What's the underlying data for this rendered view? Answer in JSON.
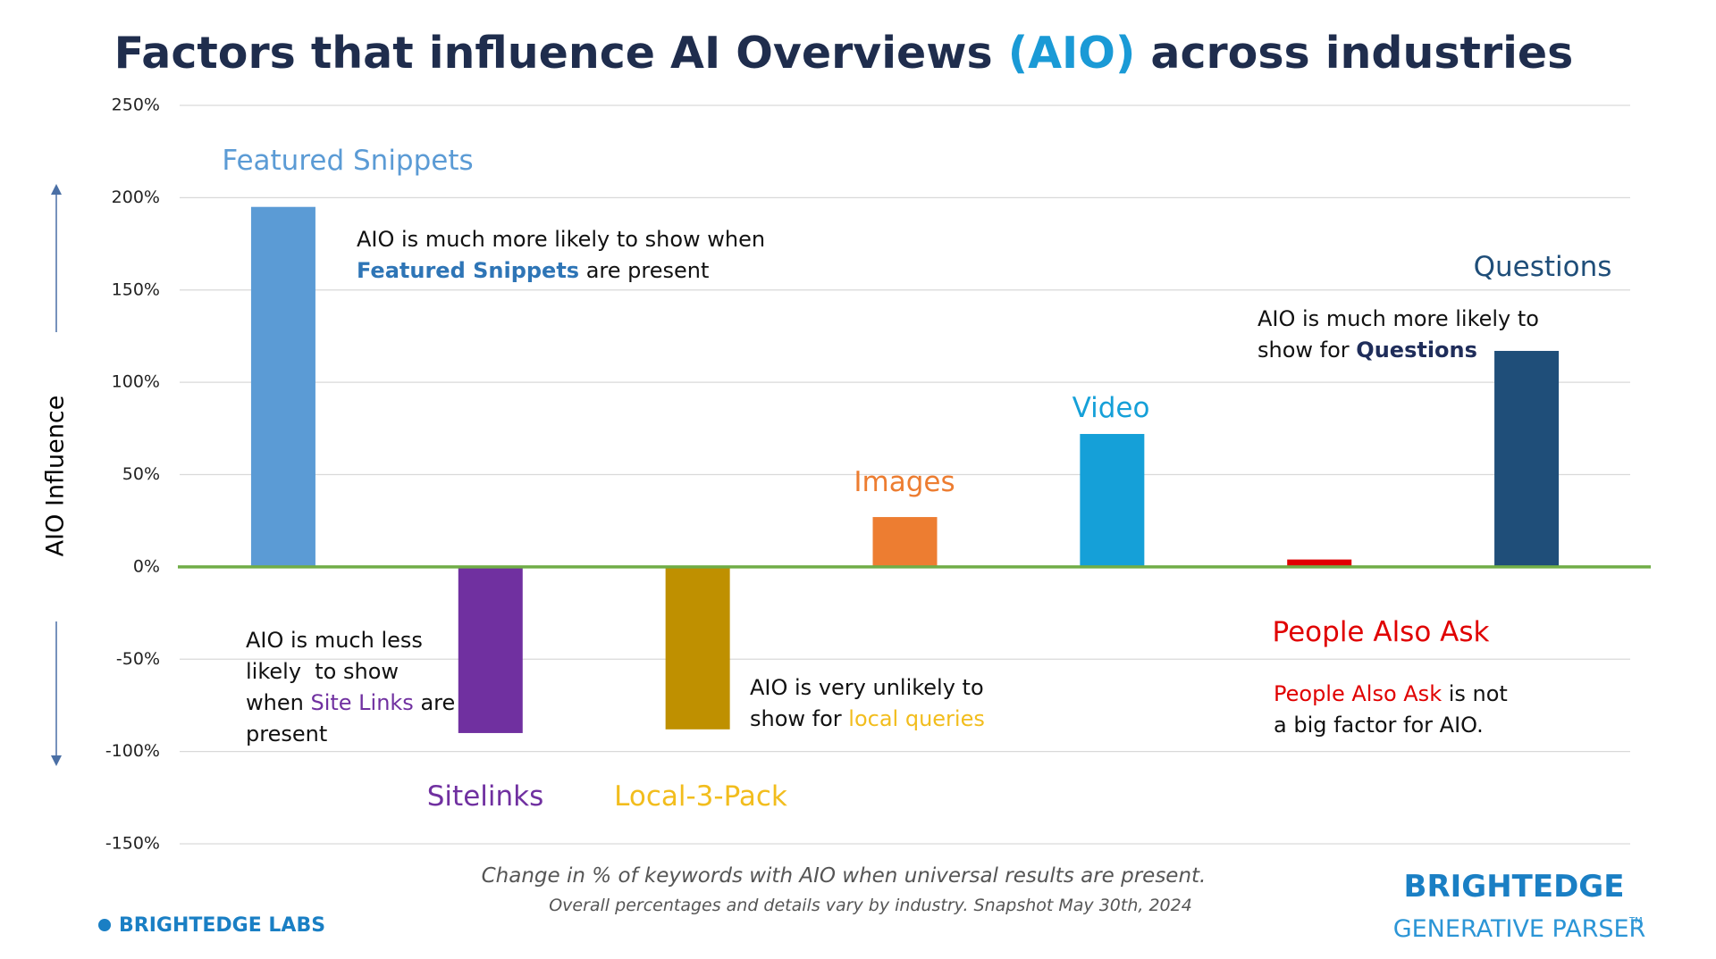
{
  "chart_data": {
    "type": "bar",
    "title_segments": [
      {
        "text": "Factors that influence AI Overviews "
      },
      {
        "text": "(AIO)",
        "color": "#1a9ad6"
      },
      {
        "text": " across industries"
      }
    ],
    "y_label": "AIO Influence",
    "categories": [
      "Featured Snippets",
      "Sitelinks",
      "Local-3-Pack",
      "Images",
      "Video",
      "People Also Ask",
      "Questions"
    ],
    "values": [
      195,
      -90,
      -88,
      27,
      72,
      4,
      117
    ],
    "colors": [
      "#5b9bd5",
      "#7030a0",
      "#bf9000",
      "#ed7d31",
      "#15a0d8",
      "#e00000",
      "#1f4e79"
    ],
    "label_colors": [
      "#5b9bd5",
      "#7030a0",
      "#f2bd1d",
      "#ed7d31",
      "#15a0d8",
      "#e00000",
      "#1f4e79"
    ],
    "ylim": [
      -150,
      250
    ],
    "yticks": [
      {
        "value": -150,
        "label": "-150%"
      },
      {
        "value": -100,
        "label": "-100%"
      },
      {
        "value": -50,
        "label": "-50%"
      },
      {
        "value": 0,
        "label": "0%"
      },
      {
        "value": 50,
        "label": "50%"
      },
      {
        "value": 100,
        "label": "100%"
      },
      {
        "value": 150,
        "label": "150%"
      },
      {
        "value": 200,
        "label": "200%"
      },
      {
        "value": 250,
        "label": "250%"
      }
    ],
    "grid": true,
    "zero_line_color": "#70ad47",
    "annotations": [
      {
        "lines": [
          [
            {
              "text": "AIO is much more likely to show when"
            }
          ],
          [
            {
              "text": "Featured Snippets",
              "color": "#2e75b6",
              "bold": true
            },
            {
              "text": " are present"
            }
          ]
        ]
      },
      {
        "lines": [
          [
            {
              "text": "AIO is much more likely to"
            }
          ],
          [
            {
              "text": "show for "
            },
            {
              "text": "Questions",
              "color": "#1f2d5a",
              "bold": true
            }
          ]
        ]
      },
      {
        "lines": [
          [
            {
              "text": "AIO is much less"
            }
          ],
          [
            {
              "text": "likely  to show"
            }
          ],
          [
            {
              "text": "when "
            },
            {
              "text": "Site Links",
              "color": "#7030a0"
            },
            {
              "text": " are"
            }
          ],
          [
            {
              "text": "present"
            }
          ]
        ]
      },
      {
        "lines": [
          [
            {
              "text": "AIO is very unlikely to"
            }
          ],
          [
            {
              "text": "show for "
            },
            {
              "text": "local queries",
              "color": "#f2bd1d"
            }
          ]
        ]
      },
      {
        "lines": [
          [
            {
              "text": "People Also Ask",
              "color": "#e00000"
            },
            {
              "text": " is not"
            }
          ],
          [
            {
              "text": "a big factor for AIO."
            }
          ]
        ]
      }
    ],
    "footnote": [
      "Change in % of keywords with AIO when universal results are present.",
      "Overall percentages and details vary by industry. Snapshot May 30th, 2024"
    ],
    "logo_left": "BRIGHTEDGE LABS",
    "logo_right": [
      "BRIGHTEDGE",
      "GENERATIVE PARSER",
      "TM"
    ]
  }
}
